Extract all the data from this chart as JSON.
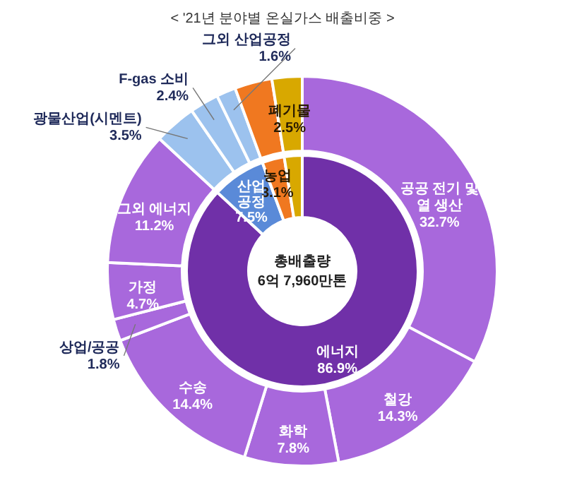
{
  "chart_data": [
    {
      "type": "donut",
      "title": "< '21년 분야별 온실가스 배출비중 >",
      "annotations": [
        "총배출량",
        "6억 7,960만톤"
      ],
      "categories": [
        "에너지",
        "산업공정",
        "농업",
        "폐기물"
      ],
      "values": [
        86.9,
        7.5,
        3.1,
        2.5
      ],
      "colors": [
        "#7030a8",
        "#5a8ad8",
        "#f07820",
        "#d8a800"
      ],
      "value_labels": [
        "86.9%",
        "7.5%",
        "3.1%",
        "2.5%"
      ],
      "data_labels": true
    },
    {
      "type": "donut",
      "categories": [
        "공공 전기 및 열 생산",
        "철강",
        "화학",
        "수송",
        "상업/공공",
        "가정",
        "그외 에너지",
        "광물산업(시멘트)",
        "F-gas 소비",
        "그외 산업공정",
        null,
        null
      ],
      "values": [
        32.7,
        14.3,
        7.8,
        14.4,
        1.8,
        4.7,
        11.2,
        3.5,
        2.4,
        1.6,
        3.1,
        2.5
      ],
      "colors": [
        "#a868dc",
        "#a868dc",
        "#a868dc",
        "#a868dc",
        "#a868dc",
        "#a868dc",
        "#a868dc",
        "#9cc2ee",
        "#9cc2ee",
        "#9cc2ee",
        "#f07820",
        "#d8a800"
      ],
      "value_labels": [
        "32.7%",
        "14.3%",
        "7.8%",
        "14.4%",
        "1.8%",
        "4.7%",
        "11.2%",
        "3.5%",
        "2.4%",
        "1.6%",
        null,
        null
      ],
      "data_labels": true
    }
  ]
}
